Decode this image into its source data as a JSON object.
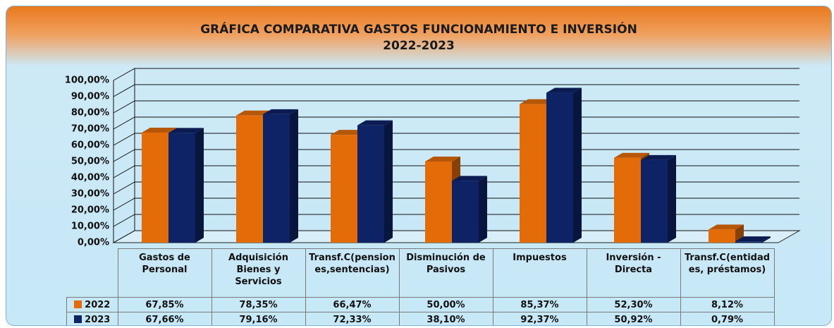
{
  "chart_data": {
    "type": "bar",
    "title": "GRÁFICA COMPARATIVA GASTOS FUNCIONAMIENTO E INVERSIÓN\n2022-2023",
    "categories": [
      "Gastos de Personal",
      "Adquisición Bienes y Servicios",
      "Transf.C(pensiones,sentencias)",
      "Disminución de Pasivos",
      "Impuestos",
      "Inversión - Directa",
      "Transf.C(entidades, préstamos)"
    ],
    "series": [
      {
        "name": "2022",
        "color": "#e36c09",
        "values": [
          67.85,
          78.35,
          66.47,
          50.0,
          85.37,
          52.3,
          8.12
        ],
        "value_labels": [
          "67,85%",
          "78,35%",
          "66,47%",
          "50,00%",
          "85,37%",
          "52,30%",
          "8,12%"
        ]
      },
      {
        "name": "2023",
        "color": "#0d2366",
        "values": [
          67.66,
          79.16,
          72.33,
          38.1,
          92.37,
          50.92,
          0.79
        ],
        "value_labels": [
          "67,66%",
          "79,16%",
          "72,33%",
          "38,10%",
          "92,37%",
          "50,92%",
          "0,79%"
        ]
      }
    ],
    "ylim": [
      0,
      100
    ],
    "yticks": [
      {
        "value": 0,
        "label": "0,00%"
      },
      {
        "value": 10,
        "label": "10,00%"
      },
      {
        "value": 20,
        "label": "20,00%"
      },
      {
        "value": 30,
        "label": "30,00%"
      },
      {
        "value": 40,
        "label": "40,00%"
      },
      {
        "value": 50,
        "label": "50,00%"
      },
      {
        "value": 60,
        "label": "60,00%"
      },
      {
        "value": 70,
        "label": "70,00%"
      },
      {
        "value": 80,
        "label": "80,00%"
      },
      {
        "value": 90,
        "label": "90,00%"
      },
      {
        "value": 100,
        "label": "100,00%"
      }
    ],
    "grid": true
  }
}
